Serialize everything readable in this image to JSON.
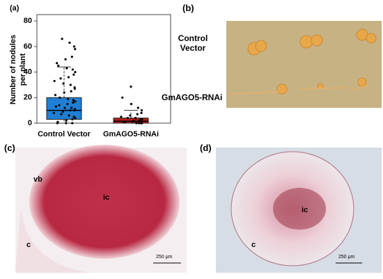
{
  "chart_data": {
    "type": "box",
    "panel_label": "(a)",
    "ylabel": "Number of nodules per plant",
    "categories": [
      "Control Vector",
      "GmAGO5-RNAi"
    ],
    "boxes": [
      {
        "min": 0,
        "q1": 3,
        "median": 10,
        "q3": 20,
        "max": 44,
        "color": "#1f7fd4"
      },
      {
        "min": 0,
        "q1": 0,
        "median": 1.5,
        "q3": 4,
        "max": 10,
        "color": "#b0201c"
      }
    ],
    "points": [
      [
        66,
        63,
        60,
        58,
        52,
        50,
        47,
        45,
        43,
        42,
        40,
        38,
        36,
        35,
        33,
        31,
        30,
        28,
        27,
        25,
        24,
        22,
        20,
        19,
        18,
        17,
        16,
        15,
        14,
        13,
        12,
        12,
        11,
        10,
        10,
        9,
        8,
        7,
        6,
        5,
        4,
        3,
        2,
        1,
        0,
        0,
        0
      ],
      [
        20,
        15,
        12,
        10,
        8,
        7,
        6,
        5,
        4,
        4,
        3,
        3,
        2,
        2,
        1,
        1,
        1,
        0,
        0,
        0,
        0
      ]
    ],
    "annotation": "*",
    "ylim": [
      0,
      85
    ],
    "yticks": [
      0,
      20,
      40,
      60,
      80
    ]
  },
  "panel_b": {
    "label": "(b)",
    "row1": "Control Vector",
    "row2": "GmAGO5-RNAi"
  },
  "panel_c": {
    "label": "(c)",
    "vb": "vb",
    "ic": "ic",
    "c": "c",
    "scale": "250 μm"
  },
  "panel_d": {
    "label": "(d)",
    "ic": "ic",
    "c": "c",
    "scale": "250 μm"
  }
}
